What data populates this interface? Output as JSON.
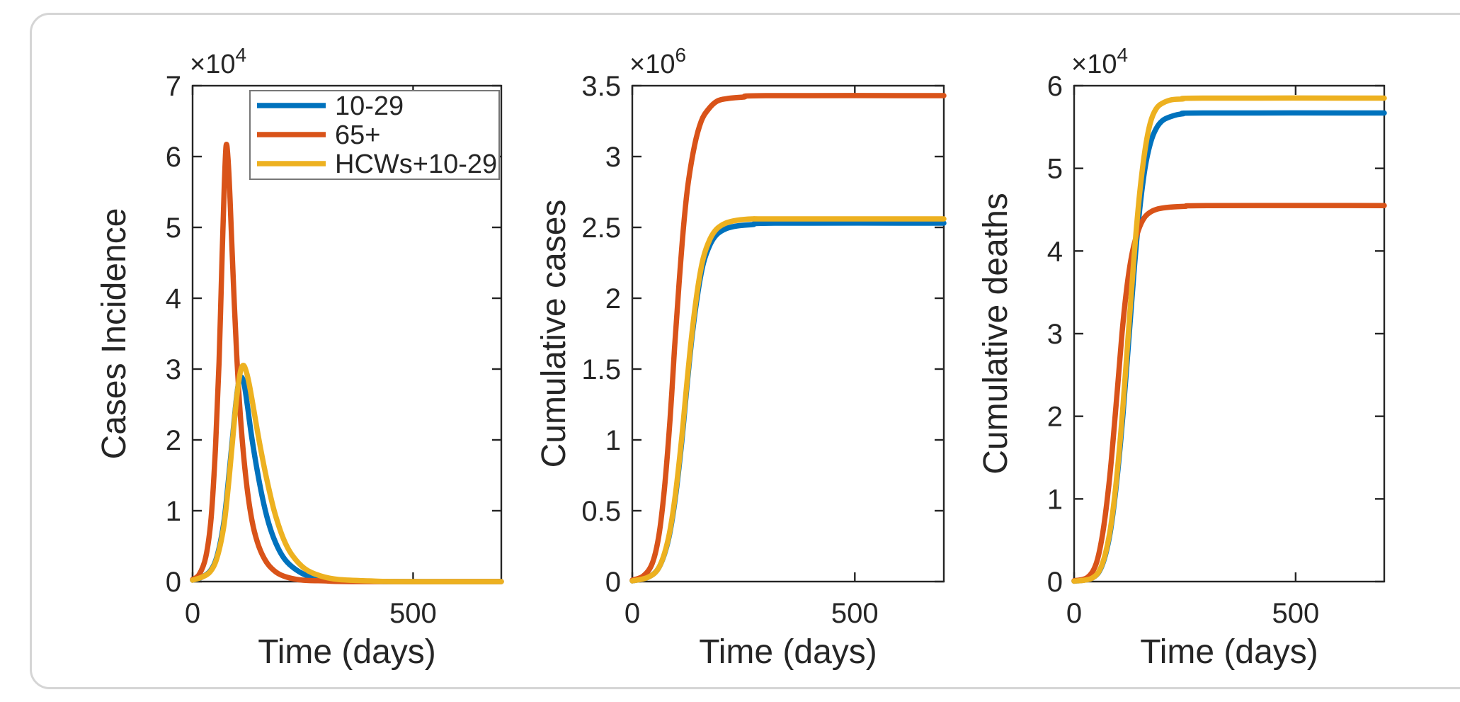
{
  "figure": {
    "background": "#ffffff",
    "axis_color": "#252525",
    "border_color": "#d5d5d5",
    "legend_border_color": "#777777"
  },
  "colors": {
    "blue": "#0072BD",
    "orange": "#D95319",
    "yellow": "#EDB120"
  },
  "chart_data": [
    {
      "id": "cases-incidence",
      "type": "line",
      "title": "",
      "xlabel": "Time (days)",
      "ylabel": "Cases Incidence",
      "y_scale": {
        "base": "×10",
        "exp": "4"
      },
      "xlim": [
        0,
        700
      ],
      "ylim": [
        0,
        7
      ],
      "xticks": [
        0,
        500
      ],
      "xtick_labels": [
        "0",
        "500"
      ],
      "yticks": [
        0,
        1,
        2,
        3,
        4,
        5,
        6,
        7
      ],
      "ytick_labels": [
        "0",
        "1",
        "2",
        "3",
        "4",
        "5",
        "6",
        "7"
      ],
      "grid": false,
      "legend": {
        "position": "northwest",
        "entries": [
          "10-29",
          "65+",
          "HCWs+10-29"
        ]
      },
      "series": [
        {
          "name": "10-29",
          "color": "#0072BD",
          "points": [
            [
              0,
              0.02
            ],
            [
              20,
              0.06
            ],
            [
              40,
              0.15
            ],
            [
              55,
              0.35
            ],
            [
              70,
              0.8
            ],
            [
              80,
              1.35
            ],
            [
              90,
              2.0
            ],
            [
              100,
              2.62
            ],
            [
              106,
              2.85
            ],
            [
              112,
              2.88
            ],
            [
              118,
              2.75
            ],
            [
              125,
              2.45
            ],
            [
              135,
              2.0
            ],
            [
              150,
              1.45
            ],
            [
              165,
              1.0
            ],
            [
              180,
              0.68
            ],
            [
              200,
              0.4
            ],
            [
              220,
              0.24
            ],
            [
              250,
              0.11
            ],
            [
              280,
              0.05
            ],
            [
              320,
              0.02
            ],
            [
              380,
              0.01
            ],
            [
              450,
              0.0
            ],
            [
              700,
              0.0
            ]
          ]
        },
        {
          "name": "65+",
          "color": "#D95319",
          "points": [
            [
              0,
              0.03
            ],
            [
              15,
              0.1
            ],
            [
              30,
              0.35
            ],
            [
              42,
              0.9
            ],
            [
              52,
              1.9
            ],
            [
              60,
              3.1
            ],
            [
              67,
              4.6
            ],
            [
              72,
              5.6
            ],
            [
              76,
              6.15
            ],
            [
              80,
              6.0
            ],
            [
              85,
              5.4
            ],
            [
              92,
              4.3
            ],
            [
              100,
              3.2
            ],
            [
              110,
              2.2
            ],
            [
              122,
              1.4
            ],
            [
              135,
              0.85
            ],
            [
              150,
              0.5
            ],
            [
              168,
              0.27
            ],
            [
              190,
              0.13
            ],
            [
              215,
              0.06
            ],
            [
              250,
              0.02
            ],
            [
              300,
              0.01
            ],
            [
              360,
              0.0
            ],
            [
              700,
              0.0
            ]
          ]
        },
        {
          "name": "HCWs+10-29",
          "color": "#EDB120",
          "points": [
            [
              0,
              0.02
            ],
            [
              20,
              0.06
            ],
            [
              40,
              0.14
            ],
            [
              55,
              0.33
            ],
            [
              70,
              0.75
            ],
            [
              80,
              1.28
            ],
            [
              90,
              1.95
            ],
            [
              100,
              2.6
            ],
            [
              108,
              2.95
            ],
            [
              114,
              3.05
            ],
            [
              120,
              3.0
            ],
            [
              128,
              2.8
            ],
            [
              138,
              2.45
            ],
            [
              152,
              1.95
            ],
            [
              168,
              1.45
            ],
            [
              185,
              1.0
            ],
            [
              205,
              0.62
            ],
            [
              225,
              0.38
            ],
            [
              255,
              0.18
            ],
            [
              290,
              0.08
            ],
            [
              330,
              0.03
            ],
            [
              400,
              0.01
            ],
            [
              470,
              0.0
            ],
            [
              700,
              0.0
            ]
          ]
        }
      ]
    },
    {
      "id": "cumulative-cases",
      "type": "line",
      "title": "",
      "xlabel": "Time (days)",
      "ylabel": "Cumulative cases",
      "y_scale": {
        "base": "×10",
        "exp": "6"
      },
      "xlim": [
        0,
        700
      ],
      "ylim": [
        0,
        3.5
      ],
      "xticks": [
        0,
        500
      ],
      "xtick_labels": [
        "0",
        "500"
      ],
      "yticks": [
        0,
        0.5,
        1,
        1.5,
        2,
        2.5,
        3,
        3.5
      ],
      "ytick_labels": [
        "0",
        "0.5",
        "1",
        "1.5",
        "2",
        "2.5",
        "3",
        "3.5"
      ],
      "grid": false,
      "legend": null,
      "series": [
        {
          "name": "10-29",
          "color": "#0072BD",
          "points": [
            [
              0,
              0.005
            ],
            [
              35,
              0.03
            ],
            [
              60,
              0.1
            ],
            [
              80,
              0.28
            ],
            [
              95,
              0.55
            ],
            [
              110,
              0.95
            ],
            [
              122,
              1.35
            ],
            [
              135,
              1.75
            ],
            [
              148,
              2.05
            ],
            [
              160,
              2.25
            ],
            [
              175,
              2.38
            ],
            [
              190,
              2.45
            ],
            [
              210,
              2.49
            ],
            [
              235,
              2.51
            ],
            [
              270,
              2.52
            ],
            [
              320,
              2.53
            ],
            [
              700,
              2.53
            ]
          ]
        },
        {
          "name": "65+",
          "color": "#D95319",
          "points": [
            [
              0,
              0.01
            ],
            [
              25,
              0.04
            ],
            [
              45,
              0.13
            ],
            [
              60,
              0.33
            ],
            [
              72,
              0.65
            ],
            [
              85,
              1.15
            ],
            [
              95,
              1.65
            ],
            [
              105,
              2.1
            ],
            [
              115,
              2.5
            ],
            [
              125,
              2.8
            ],
            [
              140,
              3.08
            ],
            [
              155,
              3.25
            ],
            [
              170,
              3.33
            ],
            [
              190,
              3.39
            ],
            [
              215,
              3.41
            ],
            [
              250,
              3.42
            ],
            [
              300,
              3.43
            ],
            [
              700,
              3.43
            ]
          ]
        },
        {
          "name": "HCWs+10-29",
          "color": "#EDB120",
          "points": [
            [
              0,
              0.005
            ],
            [
              35,
              0.03
            ],
            [
              60,
              0.1
            ],
            [
              80,
              0.29
            ],
            [
              95,
              0.57
            ],
            [
              110,
              0.98
            ],
            [
              122,
              1.38
            ],
            [
              135,
              1.78
            ],
            [
              148,
              2.09
            ],
            [
              160,
              2.29
            ],
            [
              175,
              2.42
            ],
            [
              190,
              2.49
            ],
            [
              210,
              2.53
            ],
            [
              235,
              2.55
            ],
            [
              270,
              2.56
            ],
            [
              320,
              2.56
            ],
            [
              700,
              2.56
            ]
          ]
        }
      ]
    },
    {
      "id": "cumulative-deaths",
      "type": "line",
      "title": "",
      "xlabel": "Time (days)",
      "ylabel": "Cumulative deaths",
      "y_scale": {
        "base": "×10",
        "exp": "4"
      },
      "xlim": [
        0,
        700
      ],
      "ylim": [
        0,
        6
      ],
      "xticks": [
        0,
        500
      ],
      "xtick_labels": [
        "0",
        "500"
      ],
      "yticks": [
        0,
        1,
        2,
        3,
        4,
        5,
        6
      ],
      "ytick_labels": [
        "0",
        "1",
        "2",
        "3",
        "4",
        "5",
        "6"
      ],
      "grid": false,
      "legend": null,
      "series": [
        {
          "name": "10-29",
          "color": "#0072BD",
          "points": [
            [
              0,
              0.005
            ],
            [
              40,
              0.04
            ],
            [
              62,
              0.18
            ],
            [
              80,
              0.55
            ],
            [
              95,
              1.15
            ],
            [
              110,
              2.0
            ],
            [
              123,
              2.9
            ],
            [
              136,
              3.8
            ],
            [
              148,
              4.5
            ],
            [
              160,
              5.0
            ],
            [
              172,
              5.3
            ],
            [
              185,
              5.48
            ],
            [
              200,
              5.58
            ],
            [
              220,
              5.63
            ],
            [
              245,
              5.66
            ],
            [
              290,
              5.67
            ],
            [
              700,
              5.67
            ]
          ]
        },
        {
          "name": "65+",
          "color": "#D95319",
          "points": [
            [
              0,
              0.01
            ],
            [
              30,
              0.05
            ],
            [
              50,
              0.22
            ],
            [
              65,
              0.6
            ],
            [
              80,
              1.25
            ],
            [
              95,
              2.15
            ],
            [
              108,
              3.0
            ],
            [
              120,
              3.6
            ],
            [
              132,
              4.0
            ],
            [
              145,
              4.25
            ],
            [
              158,
              4.4
            ],
            [
              172,
              4.47
            ],
            [
              190,
              4.51
            ],
            [
              215,
              4.53
            ],
            [
              250,
              4.54
            ],
            [
              300,
              4.55
            ],
            [
              700,
              4.55
            ]
          ]
        },
        {
          "name": "HCWs+10-29",
          "color": "#EDB120",
          "points": [
            [
              0,
              0.005
            ],
            [
              40,
              0.04
            ],
            [
              62,
              0.19
            ],
            [
              80,
              0.58
            ],
            [
              95,
              1.2
            ],
            [
              110,
              2.1
            ],
            [
              123,
              3.05
            ],
            [
              136,
              3.98
            ],
            [
              148,
              4.7
            ],
            [
              160,
              5.22
            ],
            [
              172,
              5.55
            ],
            [
              185,
              5.72
            ],
            [
              200,
              5.79
            ],
            [
              220,
              5.83
            ],
            [
              245,
              5.84
            ],
            [
              290,
              5.85
            ],
            [
              700,
              5.85
            ]
          ]
        }
      ]
    }
  ]
}
